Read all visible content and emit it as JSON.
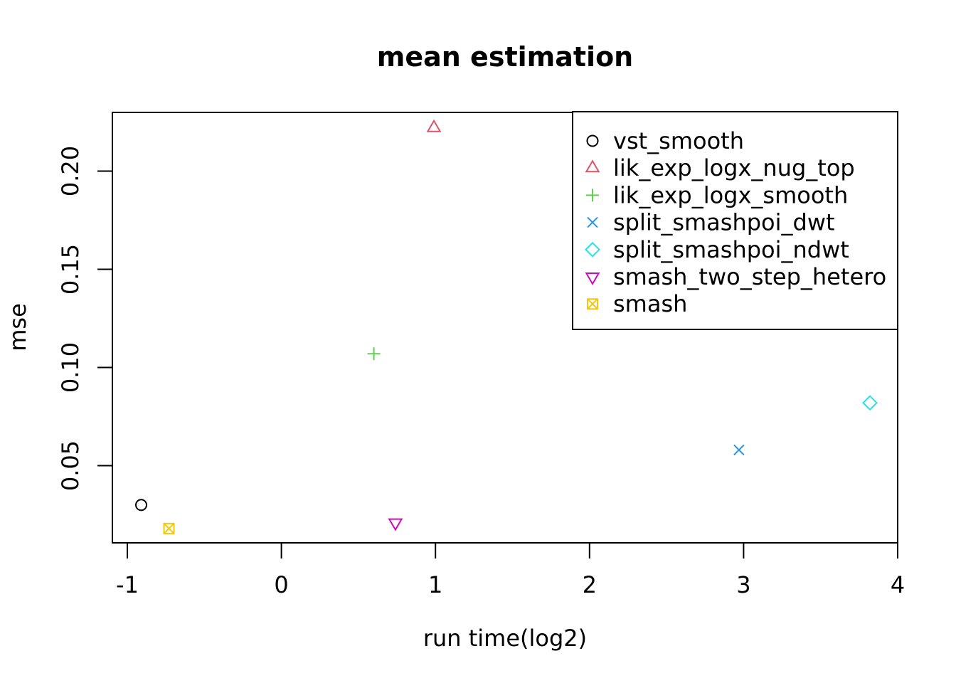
{
  "figure": {
    "title": "mean estimation",
    "xlabel": "run time(log2)",
    "ylabel": "mse"
  },
  "chart_data": {
    "type": "scatter",
    "title": "mean estimation",
    "xlabel": "run time(log2)",
    "ylabel": "mse",
    "xlim": [
      -1.097,
      4.0
    ],
    "ylim": [
      0.0107,
      0.2299
    ],
    "xticks": [
      -1,
      0,
      1,
      2,
      3,
      4
    ],
    "xtick_labels": [
      "-1",
      "0",
      "1",
      "2",
      "3",
      "4"
    ],
    "yticks": [
      0.05,
      0.1,
      0.15,
      0.2
    ],
    "ytick_labels": [
      "0.05",
      "0.10",
      "0.15",
      "0.20"
    ],
    "grid": false,
    "plot_border": true,
    "background_color": "#ffffff",
    "legend_position": "top-right",
    "series": [
      {
        "name": "vst_smooth",
        "marker": "circle",
        "color": "#000000",
        "points": [
          [
            -0.91,
            0.03
          ]
        ]
      },
      {
        "name": "lik_exp_logx_nug_top",
        "marker": "triangle-up",
        "color": "#DF536B",
        "points": [
          [
            0.99,
            0.222
          ]
        ]
      },
      {
        "name": "lik_exp_logx_smooth",
        "marker": "plus",
        "color": "#61D04F",
        "points": [
          [
            0.6,
            0.107
          ]
        ]
      },
      {
        "name": "split_smashpoi_dwt",
        "marker": "x",
        "color": "#2297E6",
        "points": [
          [
            2.97,
            0.058
          ]
        ]
      },
      {
        "name": "split_smashpoi_ndwt",
        "marker": "diamond",
        "color": "#28E2E5",
        "points": [
          [
            3.82,
            0.082
          ]
        ]
      },
      {
        "name": "smash_two_step_hetero",
        "marker": "triangle-down",
        "color": "#CD0BBC",
        "points": [
          [
            0.74,
            0.021
          ]
        ]
      },
      {
        "name": "smash",
        "marker": "square-x",
        "color": "#F5C710",
        "points": [
          [
            -0.73,
            0.018
          ]
        ]
      }
    ]
  }
}
